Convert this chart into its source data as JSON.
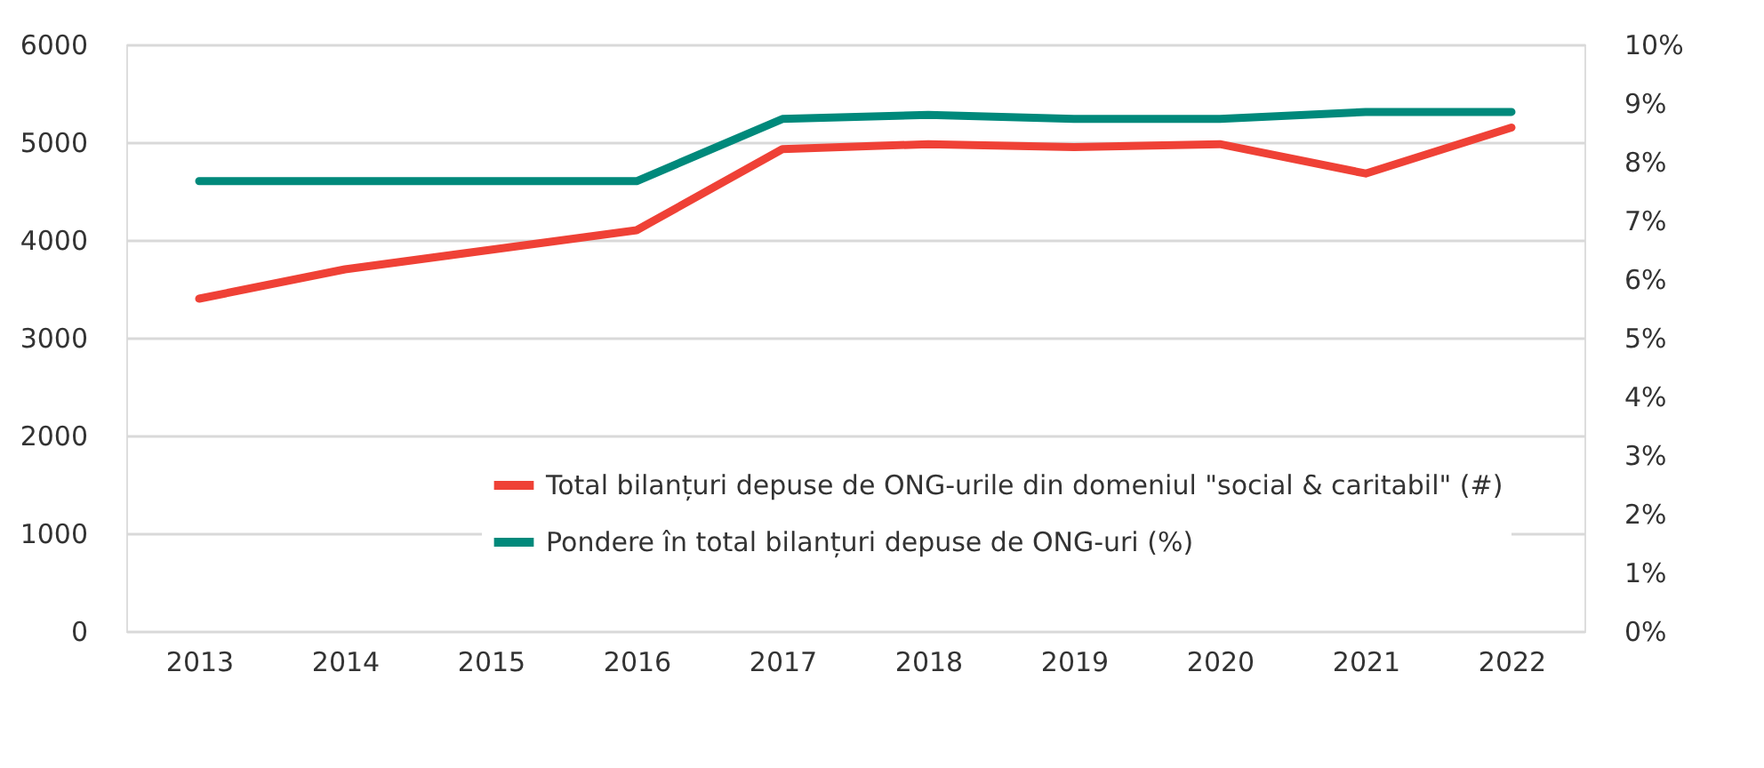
{
  "chart_data": {
    "type": "line",
    "categories": [
      "2013",
      "2014",
      "2015",
      "2016",
      "2017",
      "2018",
      "2019",
      "2020",
      "2021",
      "2022"
    ],
    "series": [
      {
        "name": "Total bilanțuri depuse de ONG-urile din domeniul \"social & caritabil\" (#)",
        "color": "#ef4136",
        "values": [
          3400,
          3700,
          3900,
          4100,
          4930,
          4980,
          4950,
          4980,
          4680,
          5150
        ]
      },
      {
        "name": "Pondere în total bilanțuri depuse de ONG-uri (%)",
        "color": "#00897b",
        "axis": "y2",
        "values": [
          7.67,
          7.67,
          7.67,
          7.67,
          8.73,
          8.8,
          8.73,
          8.73,
          8.85,
          8.85
        ]
      }
    ],
    "ylim": [
      0,
      6000
    ],
    "yticks": [
      0,
      1000,
      2000,
      3000,
      4000,
      5000,
      6000
    ],
    "y2lim": [
      0,
      10
    ],
    "y2ticks": [
      {
        "value": 0,
        "label": "0%"
      },
      {
        "value": 1,
        "label": "1%"
      },
      {
        "value": 2,
        "label": "2%"
      },
      {
        "value": 3,
        "label": "3%"
      },
      {
        "value": 4,
        "label": "4%"
      },
      {
        "value": 5,
        "label": "5%"
      },
      {
        "value": 6,
        "label": "6%"
      },
      {
        "value": 7,
        "label": "7%"
      },
      {
        "value": 8,
        "label": "8%"
      },
      {
        "value": 9,
        "label": "9%"
      },
      {
        "value": 10,
        "label": "10%"
      }
    ],
    "grid": "y",
    "legend": "bottom",
    "marker": "none",
    "line_style": "solid"
  }
}
